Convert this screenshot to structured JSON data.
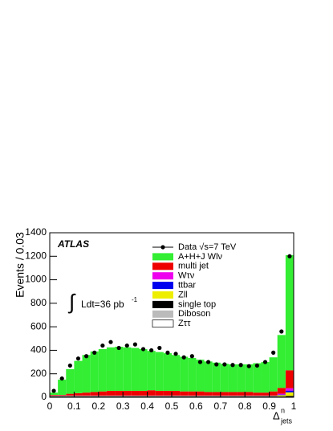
{
  "chart_data": {
    "type": "stacked-histogram",
    "y_label": "Events / 0.03",
    "x_label": {
      "base": "Δ",
      "sup": "n",
      "sub": "jets"
    },
    "experiment": "ATLAS",
    "lumi": {
      "integral": "∫",
      "text": "Ldt=36 pb",
      "sup": "-1"
    },
    "bins": [
      0,
      0.0333,
      0.0667,
      0.1,
      0.1333,
      0.1667,
      0.2,
      0.2333,
      0.2667,
      0.3,
      0.3333,
      0.3667,
      0.4,
      0.4333,
      0.4667,
      0.5,
      0.5333,
      0.5667,
      0.6,
      0.6333,
      0.6667,
      0.7,
      0.7333,
      0.7667,
      0.8,
      0.8333,
      0.8667,
      0.9,
      0.9333,
      0.9667,
      1
    ],
    "data": {
      "name": "Data √s=7 TeV",
      "color": "#000000",
      "values": [
        55,
        160,
        270,
        330,
        350,
        380,
        440,
        470,
        420,
        440,
        450,
        410,
        400,
        420,
        380,
        370,
        340,
        350,
        300,
        300,
        280,
        280,
        275,
        275,
        265,
        270,
        300,
        380,
        560,
        1200
      ]
    },
    "series": [
      {
        "name": "A+H+J Wlν",
        "color": "#33ee33",
        "values": [
          20,
          130,
          210,
          275,
          320,
          345,
          360,
          370,
          375,
          370,
          365,
          355,
          335,
          330,
          320,
          305,
          295,
          285,
          270,
          260,
          250,
          240,
          235,
          235,
          235,
          250,
          260,
          290,
          450,
          980
        ]
      },
      {
        "name": "multi jet",
        "color": "#ee0000",
        "values": [
          5,
          5,
          15,
          20,
          25,
          30,
          35,
          40,
          40,
          40,
          40,
          40,
          45,
          40,
          40,
          40,
          35,
          35,
          35,
          30,
          30,
          30,
          30,
          30,
          30,
          25,
          25,
          35,
          49,
          153
        ]
      },
      {
        "name": "Wτν",
        "color": "#ee00ee",
        "values": [
          2,
          2,
          2,
          2,
          2,
          2,
          2,
          2,
          2,
          2,
          2,
          2,
          2,
          2,
          2,
          2,
          2,
          2,
          2,
          2,
          2,
          2,
          2,
          2,
          2,
          2,
          2,
          2,
          8,
          20
        ]
      },
      {
        "name": "ttbar",
        "color": "#0000ee",
        "values": [
          2,
          2,
          2,
          2,
          2,
          2,
          2,
          2,
          2,
          2,
          2,
          2,
          2,
          2,
          2,
          2,
          2,
          2,
          2,
          2,
          2,
          2,
          2,
          2,
          2,
          2,
          2,
          2,
          5,
          15
        ]
      },
      {
        "name": "Zll",
        "color": "#eeee00",
        "values": [
          3,
          3,
          3,
          3,
          3,
          3,
          3,
          3,
          3,
          3,
          3,
          3,
          3,
          3,
          3,
          3,
          3,
          3,
          3,
          3,
          3,
          3,
          3,
          3,
          3,
          3,
          3,
          3,
          10,
          30
        ]
      },
      {
        "name": "single top",
        "color": "#000000",
        "values": [
          4,
          4,
          4,
          4,
          4,
          4,
          4,
          4,
          4,
          4,
          4,
          4,
          4,
          4,
          4,
          4,
          4,
          4,
          4,
          4,
          4,
          4,
          4,
          4,
          4,
          4,
          4,
          4,
          4,
          8
        ]
      },
      {
        "name": "Diboson",
        "color": "#bbbbbb",
        "values": [
          2,
          2,
          2,
          2,
          2,
          2,
          2,
          2,
          2,
          2,
          2,
          2,
          2,
          2,
          2,
          2,
          2,
          2,
          2,
          2,
          2,
          2,
          2,
          2,
          2,
          2,
          2,
          2,
          2,
          2
        ]
      },
      {
        "name": "Zττ",
        "color": "#ffffff",
        "values": [
          2,
          2,
          2,
          2,
          2,
          2,
          2,
          2,
          2,
          2,
          2,
          2,
          2,
          2,
          2,
          2,
          2,
          2,
          2,
          2,
          2,
          2,
          2,
          2,
          2,
          2,
          2,
          2,
          2,
          2
        ]
      }
    ],
    "xlim": [
      0,
      1
    ],
    "xticks": [
      0,
      0.1,
      0.2,
      0.3,
      0.4,
      0.5,
      0.6,
      0.7,
      0.8,
      0.9,
      1
    ],
    "ylim": [
      0,
      1400
    ],
    "yticks": [
      0,
      200,
      400,
      600,
      800,
      1000,
      1200,
      1400
    ]
  }
}
